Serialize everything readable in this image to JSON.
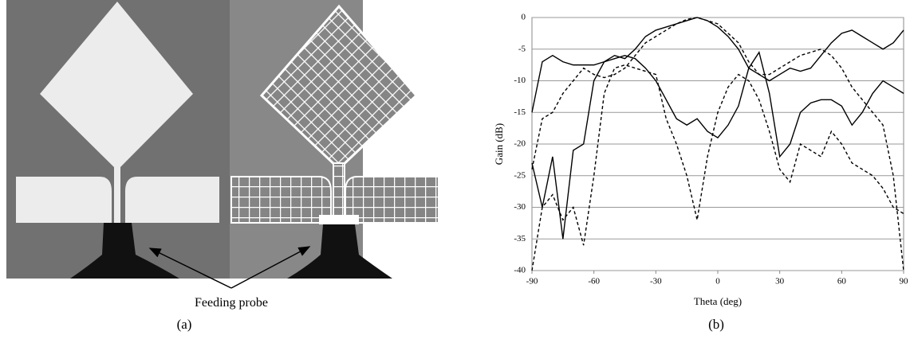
{
  "figure": {
    "annotation": "Feeding probe",
    "caption_a": "(a)",
    "caption_b": "(b)"
  },
  "chart_data": {
    "type": "line",
    "ylabel": "Gain (dB)",
    "xlabel": "Theta (deg)",
    "x": [
      -90,
      -85,
      -80,
      -75,
      -70,
      -65,
      -60,
      -55,
      -50,
      -45,
      -40,
      -35,
      -30,
      -25,
      -20,
      -15,
      -10,
      -5,
      0,
      5,
      10,
      15,
      20,
      25,
      30,
      35,
      40,
      45,
      50,
      55,
      60,
      65,
      70,
      75,
      80,
      85,
      90
    ],
    "series": [
      {
        "color": "#000000",
        "dashed": false,
        "values": [
          -15,
          -7,
          -6,
          -7,
          -7.5,
          -7.5,
          -7.5,
          -7,
          -6,
          -6.5,
          -5,
          -3,
          -2,
          -1.5,
          -1,
          -0.5,
          0,
          -0.5,
          -1.5,
          -3,
          -5,
          -8,
          -9,
          -10,
          -9,
          -8,
          -8.5,
          -8,
          -6,
          -4,
          -2.5,
          -2,
          -3,
          -4,
          -5,
          -4,
          -2
        ]
      },
      {
        "color": "#000000",
        "dashed": true,
        "values": [
          -24,
          -16,
          -15,
          -12,
          -10,
          -8,
          -9,
          -9.5,
          -9,
          -8,
          -6,
          -4,
          -3,
          -2,
          -1,
          -0.3,
          0,
          -0.5,
          -1,
          -2.5,
          -4,
          -7,
          -9,
          -9,
          -8,
          -7,
          -6,
          -5.5,
          -5,
          -6,
          -8,
          -11,
          -13,
          -15,
          -17,
          -25,
          -40
        ]
      },
      {
        "color": "#000000",
        "dashed": false,
        "values": [
          -23,
          -30,
          -22,
          -35,
          -21,
          -20,
          -10,
          -7,
          -6.5,
          -6,
          -6.5,
          -8,
          -10,
          -13,
          -16,
          -17,
          -16,
          -18,
          -19,
          -17,
          -14,
          -8,
          -5.5,
          -12,
          -22,
          -20,
          -15,
          -13.5,
          -13,
          -13,
          -14,
          -17,
          -15,
          -12,
          -10,
          -11,
          -12
        ]
      },
      {
        "color": "#000000",
        "dashed": true,
        "values": [
          -40,
          -30,
          -28,
          -32,
          -30,
          -36,
          -25,
          -12,
          -8,
          -7.5,
          -8,
          -8.5,
          -9,
          -16,
          -20,
          -25,
          -32,
          -22,
          -15,
          -11,
          -9,
          -10,
          -13,
          -18,
          -24,
          -26,
          -20,
          -21,
          -22,
          -18,
          -20,
          -23,
          -24,
          -25,
          -27,
          -30,
          -31
        ]
      }
    ],
    "xlim": [
      -90,
      90
    ],
    "ylim": [
      -40,
      0
    ],
    "xticks": [
      -90,
      -60,
      -30,
      0,
      30,
      60,
      90
    ],
    "yticks": [
      0,
      -5,
      -10,
      -15,
      -20,
      -25,
      -30,
      -35,
      -40
    ],
    "grid": true
  }
}
